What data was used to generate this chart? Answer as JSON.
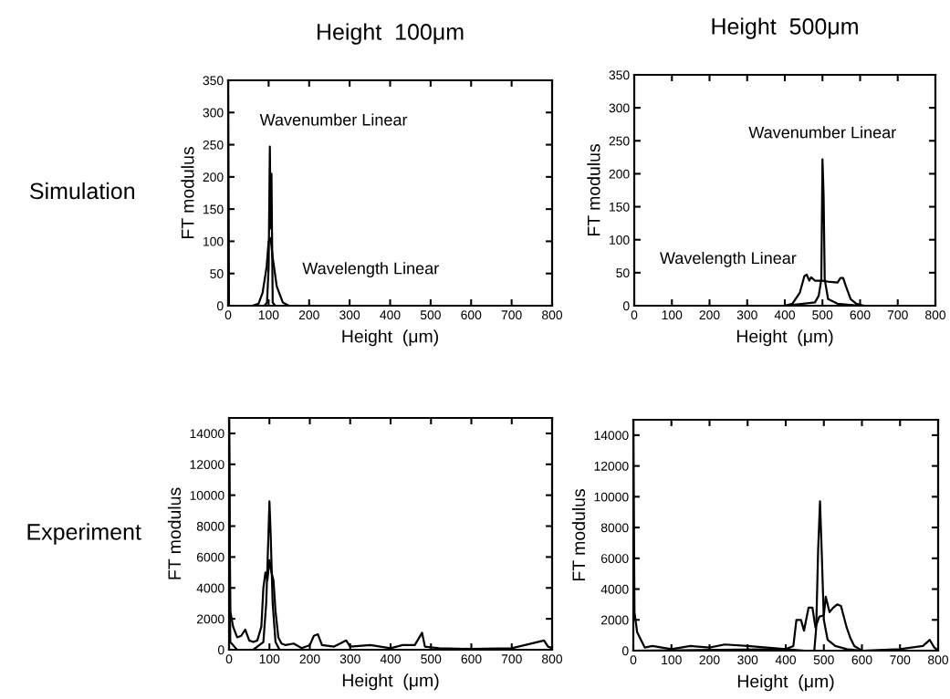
{
  "chart_data": [
    {
      "type": "line",
      "title": "Height  100μm",
      "xlabel": "Height  (μm)",
      "ylabel": "FT modulus",
      "xlim": [
        0,
        800
      ],
      "xticks": [
        0,
        100,
        200,
        300,
        400,
        500,
        600,
        700,
        800
      ],
      "ylim": [
        0,
        350
      ],
      "yticks": [
        0,
        50,
        100,
        150,
        200,
        250,
        300,
        350
      ],
      "annotations": [
        "Simulation"
      ],
      "series": [
        {
          "name": "Wavenumber Linear",
          "color": "#000000",
          "x": [
            0,
            2,
            5,
            40,
            90,
            96,
            100,
            103,
            105,
            107,
            110,
            116,
            800
          ],
          "values": [
            350,
            0,
            0,
            0,
            0,
            5,
            60,
            247,
            120,
            205,
            5,
            0,
            0
          ]
        },
        {
          "name": "Wavelength Linear",
          "color": "#000000",
          "x": [
            0,
            1,
            3,
            60,
            75,
            85,
            95,
            100,
            105,
            110,
            120,
            135,
            150,
            800
          ],
          "values": [
            175,
            0,
            0,
            0,
            3,
            20,
            60,
            100,
            105,
            75,
            30,
            5,
            0,
            0
          ]
        }
      ]
    },
    {
      "type": "line",
      "title": "Height  500μm",
      "xlabel": "Height  (μm)",
      "ylabel": "FT modulus",
      "xlim": [
        0,
        800
      ],
      "xticks": [
        0,
        100,
        200,
        300,
        400,
        500,
        600,
        700,
        800
      ],
      "ylim": [
        0,
        350
      ],
      "yticks": [
        0,
        50,
        100,
        150,
        200,
        250,
        300,
        350
      ],
      "series": [
        {
          "name": "Wavenumber Linear",
          "color": "#000000",
          "x": [
            0,
            400,
            480,
            490,
            497,
            500,
            503,
            506,
            515,
            540,
            600,
            800
          ],
          "values": [
            0,
            0,
            5,
            15,
            40,
            222,
            168,
            40,
            10,
            3,
            0,
            0
          ]
        },
        {
          "name": "Wavelength Linear",
          "color": "#000000",
          "x": [
            0,
            400,
            420,
            440,
            452,
            458,
            465,
            470,
            480,
            500,
            520,
            540,
            548,
            555,
            562,
            575,
            590,
            610,
            800
          ],
          "values": [
            0,
            0,
            3,
            20,
            45,
            47,
            38,
            43,
            38,
            38,
            36,
            35,
            42,
            42,
            30,
            10,
            3,
            0,
            0
          ]
        }
      ]
    },
    {
      "type": "line",
      "xlabel": "Height  (μm)",
      "ylabel": "FT modulus",
      "xlim": [
        0,
        800
      ],
      "xticks": [
        0,
        100,
        200,
        300,
        400,
        500,
        600,
        700,
        800
      ],
      "ylim": [
        0,
        15000
      ],
      "yticks": [
        0,
        2000,
        4000,
        6000,
        8000,
        10000,
        12000,
        14000
      ],
      "annotations": [
        "Experiment"
      ],
      "series": [
        {
          "color": "#000000",
          "x": [
            0,
            3,
            10,
            20,
            30,
            40,
            50,
            60,
            70,
            80,
            85,
            90,
            95,
            100,
            105,
            110,
            115,
            122,
            130,
            140,
            160,
            180,
            200,
            210,
            220,
            230,
            260,
            275,
            290,
            300,
            350,
            400,
            430,
            460,
            478,
            485,
            520,
            600,
            700,
            780,
            790,
            800
          ],
          "values": [
            15000,
            2500,
            1500,
            800,
            900,
            1300,
            600,
            500,
            600,
            1500,
            4000,
            5000,
            4500,
            5800,
            5000,
            4500,
            2500,
            800,
            400,
            300,
            400,
            100,
            300,
            900,
            1000,
            300,
            200,
            400,
            600,
            200,
            300,
            100,
            300,
            300,
            1100,
            200,
            100,
            50,
            100,
            600,
            200,
            100
          ]
        },
        {
          "color": "#000000",
          "x": [
            0,
            3,
            20,
            60,
            85,
            92,
            97,
            100,
            103,
            108,
            115,
            125,
            800
          ],
          "values": [
            15000,
            500,
            0,
            0,
            500,
            3000,
            7000,
            9600,
            7500,
            3000,
            500,
            0,
            0
          ]
        }
      ]
    },
    {
      "type": "line",
      "xlabel": "Height  (μm)",
      "ylabel": "FT modulus",
      "xlim": [
        0,
        800
      ],
      "xticks": [
        0,
        100,
        200,
        300,
        400,
        500,
        600,
        700,
        800
      ],
      "ylim": [
        0,
        15000
      ],
      "yticks": [
        0,
        2000,
        4000,
        6000,
        8000,
        10000,
        12000,
        14000
      ],
      "series": [
        {
          "color": "#000000",
          "x": [
            0,
            3,
            10,
            20,
            30,
            50,
            100,
            150,
            200,
            240,
            300,
            350,
            400,
            450,
            475,
            480,
            485,
            490,
            495,
            500,
            510,
            530,
            560,
            600,
            800
          ],
          "values": [
            15000,
            2500,
            1200,
            700,
            200,
            300,
            100,
            300,
            200,
            400,
            300,
            200,
            100,
            0,
            0,
            1500,
            6500,
            9700,
            6000,
            2000,
            700,
            300,
            100,
            0,
            0
          ]
        },
        {
          "color": "#000000",
          "x": [
            0,
            400,
            420,
            428,
            440,
            448,
            460,
            470,
            478,
            488,
            500,
            505,
            515,
            525,
            535,
            545,
            560,
            570,
            580,
            600,
            700,
            760,
            778,
            790,
            800
          ],
          "values": [
            0,
            100,
            300,
            2000,
            2000,
            1300,
            2800,
            2800,
            1500,
            2200,
            2300,
            3500,
            2500,
            2800,
            3000,
            2900,
            1500,
            800,
            300,
            0,
            100,
            300,
            700,
            200,
            0
          ]
        }
      ]
    }
  ]
}
